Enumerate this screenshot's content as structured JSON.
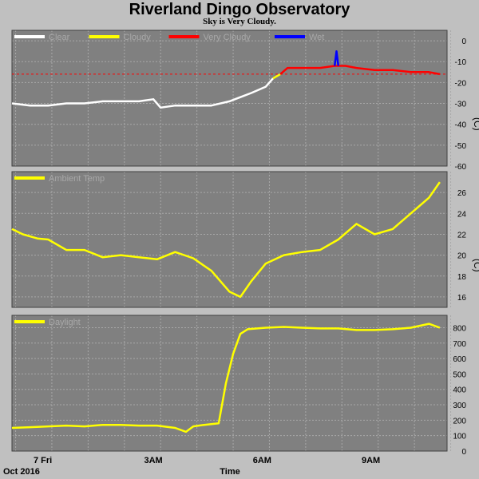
{
  "title": "Riverland Dingo Observatory",
  "subtitle": "Sky is Very Cloudy.",
  "xlabel": "Time",
  "date_label": "Oct 2016",
  "colors": {
    "background": "#c0c0c0",
    "plot": "#808080",
    "grid": "#a8a8a8",
    "white": "#ffffff",
    "yellow": "#ffff00",
    "red": "#ff0000",
    "blue": "#0000ff",
    "threshold": "#ff0000"
  },
  "chart_data": [
    {
      "type": "line",
      "name": "sky-temperature",
      "legend": [
        "Clear",
        "Cloudy",
        "Very Cloudy",
        "Wet"
      ],
      "ylabel": "(C)",
      "ylim": [
        -60,
        5
      ],
      "yticks": [
        0,
        -10,
        -20,
        -30,
        -40,
        -50,
        -60
      ],
      "threshold": -16,
      "x_ticks": [
        "7 Fri",
        "3AM",
        "6AM",
        "9AM"
      ],
      "series": [
        {
          "name": "Clear",
          "color": "white",
          "x": [
            0,
            0.5,
            1,
            1.5,
            2,
            2.5,
            3,
            3.5,
            3.9,
            4.1,
            4.5,
            5,
            5.5,
            6,
            6.3,
            6.6,
            7,
            7.2
          ],
          "y": [
            -30,
            -31,
            -31,
            -30,
            -30,
            -29,
            -29,
            -29,
            -28,
            -32,
            -31,
            -31,
            -31,
            -29,
            -27,
            -25,
            -22,
            -18
          ]
        },
        {
          "name": "Cloudy",
          "color": "yellow",
          "x": [
            7.2,
            7.4
          ],
          "y": [
            -18,
            -16
          ]
        },
        {
          "name": "Very Cloudy",
          "color": "red",
          "x": [
            7.4,
            7.6,
            8,
            8.5,
            8.9,
            9.2,
            9.5,
            10,
            10.5,
            11,
            11.5,
            11.8
          ],
          "y": [
            -16,
            -13,
            -13,
            -13,
            -12,
            -12,
            -13,
            -14,
            -14,
            -15,
            -15,
            -16
          ]
        },
        {
          "name": "Wet",
          "color": "blue",
          "x": [
            8.9,
            8.95,
            9.0
          ],
          "y": [
            -12,
            -5,
            -12
          ]
        }
      ]
    },
    {
      "type": "line",
      "name": "ambient-temperature",
      "legend": [
        "Ambient Temp"
      ],
      "ylabel": "(C)",
      "ylim": [
        15,
        28
      ],
      "yticks": [
        16,
        18,
        20,
        22,
        24,
        26
      ],
      "x_ticks": [
        "7 Fri",
        "3AM",
        "6AM",
        "9AM"
      ],
      "series": [
        {
          "name": "Ambient Temp",
          "color": "yellow",
          "x": [
            0,
            0.3,
            0.7,
            1,
            1.5,
            2,
            2.5,
            3,
            3.5,
            4,
            4.5,
            5,
            5.5,
            6,
            6.3,
            6.6,
            7,
            7.5,
            8,
            8.5,
            9,
            9.5,
            10,
            10.5,
            11,
            11.5,
            11.8
          ],
          "y": [
            22.5,
            22,
            21.6,
            21.5,
            20.5,
            20.5,
            19.8,
            20,
            19.8,
            19.6,
            20.3,
            19.7,
            18.5,
            16.5,
            16,
            17.5,
            19.2,
            20,
            20.3,
            20.5,
            21.5,
            23,
            22,
            22.5,
            24,
            25.5,
            27
          ]
        }
      ]
    },
    {
      "type": "line",
      "name": "daylight",
      "legend": [
        "Daylight"
      ],
      "ylabel": "",
      "ylim": [
        0,
        880
      ],
      "yticks": [
        0,
        100,
        200,
        300,
        400,
        500,
        600,
        700,
        800
      ],
      "x_ticks": [
        "7 Fri",
        "3AM",
        "6AM",
        "9AM"
      ],
      "series": [
        {
          "name": "Daylight",
          "color": "yellow",
          "x": [
            0,
            0.5,
            1,
            1.5,
            2,
            2.5,
            3,
            3.5,
            4,
            4.5,
            4.8,
            5,
            5.3,
            5.5,
            5.7,
            5.9,
            6.1,
            6.3,
            6.5,
            7,
            7.5,
            8,
            8.5,
            9,
            9.5,
            10,
            10.5,
            11,
            11.5,
            11.8
          ],
          "y": [
            150,
            155,
            160,
            165,
            160,
            170,
            170,
            165,
            165,
            150,
            125,
            160,
            170,
            175,
            180,
            440,
            630,
            760,
            790,
            800,
            805,
            800,
            795,
            795,
            785,
            785,
            790,
            800,
            825,
            800
          ]
        }
      ]
    }
  ]
}
